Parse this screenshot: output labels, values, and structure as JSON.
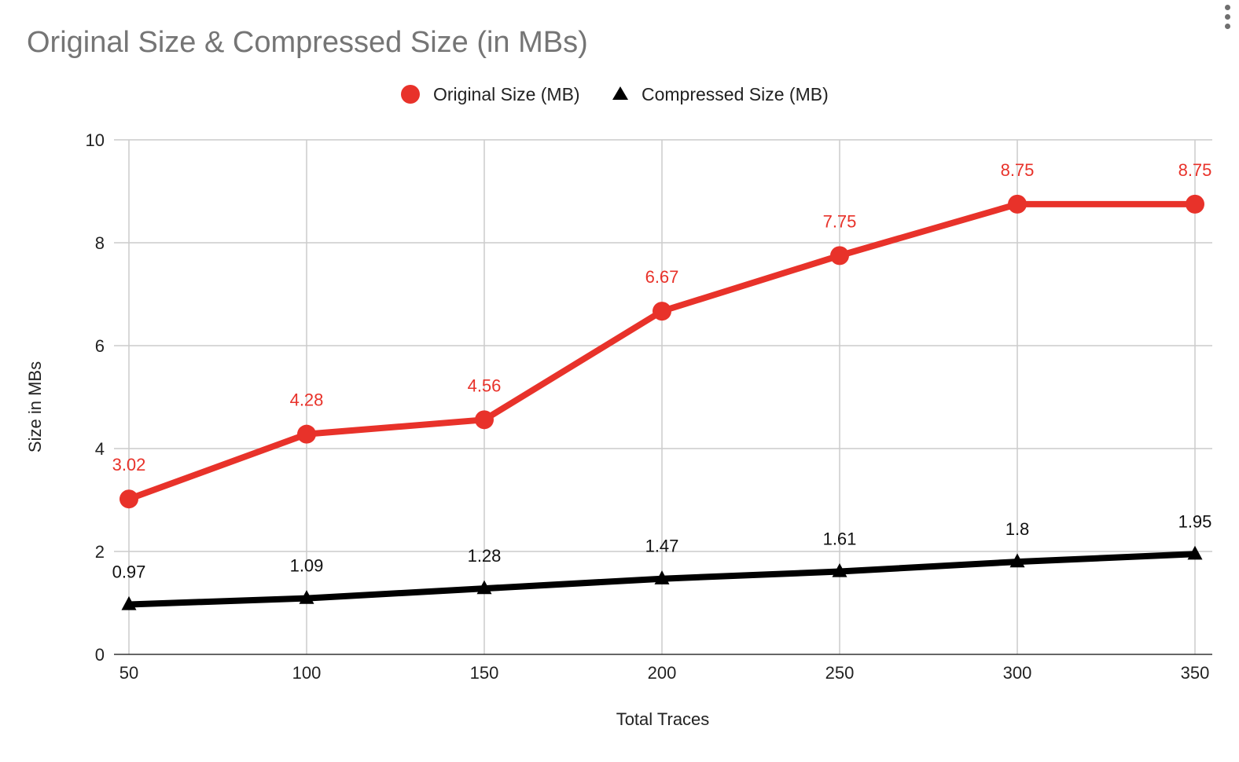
{
  "chart_data": {
    "type": "line",
    "title": "Original Size & Compressed Size (in MBs)",
    "xlabel": "Total Traces",
    "ylabel": "Size in MBs",
    "x": [
      50,
      100,
      150,
      200,
      250,
      300,
      350
    ],
    "x_tick_labels": [
      "50",
      "100",
      "150",
      "200",
      "250",
      "300",
      "350"
    ],
    "ylim": [
      0,
      10
    ],
    "y_ticks": [
      0,
      2,
      4,
      6,
      8,
      10
    ],
    "y_tick_labels": [
      "0",
      "2",
      "4",
      "6",
      "8",
      "10"
    ],
    "grid": true,
    "legend_position": "top-center",
    "series": [
      {
        "name": "Original Size (MB)",
        "marker": "circle",
        "color": "#e8322a",
        "values": [
          3.02,
          4.28,
          4.56,
          6.67,
          7.75,
          8.75,
          8.75
        ],
        "labels": [
          "3.02",
          "4.28",
          "4.56",
          "6.67",
          "7.75",
          "8.75",
          "8.75"
        ]
      },
      {
        "name": "Compressed Size (MB)",
        "marker": "triangle",
        "color": "#000000",
        "values": [
          0.97,
          1.09,
          1.28,
          1.47,
          1.61,
          1.8,
          1.95
        ],
        "labels": [
          "0.97",
          "1.09",
          "1.28",
          "1.47",
          "1.61",
          "1.8",
          "1.95"
        ]
      }
    ]
  },
  "menu": {
    "icon": "more-vert-icon"
  }
}
